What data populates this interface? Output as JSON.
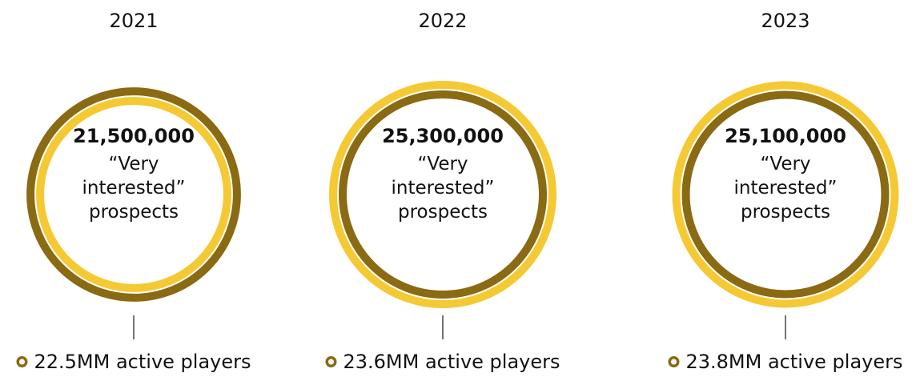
{
  "chart_data": {
    "type": "bubble",
    "categories": [
      "2021",
      "2022",
      "2023"
    ],
    "series": [
      {
        "values": [
          21500000,
          25300000,
          25100000
        ],
        "value_labels": [
          "21,500,000",
          "25,300,000",
          "25,100,000"
        ],
        "description": [
          "“Very",
          "interested”",
          "prospects"
        ]
      },
      {
        "values": [
          22.5,
          23.6,
          23.8
        ],
        "unit": "MM",
        "labels": [
          "22.5MM active players",
          "23.6MM active players",
          "23.8MM active players"
        ]
      }
    ],
    "title": "",
    "xlabel": "",
    "ylabel": ""
  },
  "colors": {
    "prospects_ring": "#F5C934",
    "players_ring": "#8A6A12",
    "connector": "#444444",
    "text": "#111111"
  },
  "icons": {
    "legend_marker": "ring-marker-icon"
  }
}
